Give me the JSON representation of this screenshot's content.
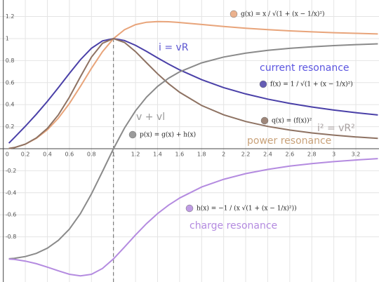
{
  "chart_data": {
    "type": "line",
    "x": [
      0.05,
      0.1,
      0.2,
      0.3,
      0.4,
      0.5,
      0.6,
      0.7,
      0.8,
      0.9,
      1.0,
      1.1,
      1.2,
      1.3,
      1.4,
      1.5,
      1.6,
      1.8,
      2.0,
      2.2,
      2.4,
      2.6,
      2.8,
      3.0,
      3.2,
      3.4
    ],
    "series": [
      {
        "name": "g(x) = x / √(1 + (x − 1/x)²)",
        "color": "#e8a47a",
        "values": [
          0.0025,
          0.0101,
          0.0408,
          0.0939,
          0.172,
          0.2774,
          0.4104,
          0.5658,
          0.7295,
          0.8806,
          1,
          1.0804,
          1.1267,
          1.1483,
          1.1546,
          1.1523,
          1.1456,
          1.1275,
          1.1094,
          1.0936,
          1.0805,
          1.0697,
          1.0607,
          1.0533,
          1.0473,
          1.042
        ]
      },
      {
        "name": "f(x) = 1 / √(1 + (x − 1/x)²)",
        "color": "#4a40a8",
        "values": [
          0.0501,
          0.1005,
          0.204,
          0.3131,
          0.4299,
          0.5547,
          0.6839,
          0.8082,
          0.9119,
          0.9785,
          1,
          0.9822,
          0.9389,
          0.8833,
          0.8247,
          0.7682,
          0.716,
          0.6264,
          0.5547,
          0.4971,
          0.4502,
          0.4114,
          0.3788,
          0.3511,
          0.3273,
          0.3065
        ]
      },
      {
        "name": "q(x) = (f(x))²",
        "color": "#8e7262",
        "values": [
          0.0025,
          0.0101,
          0.0416,
          0.098,
          0.1848,
          0.3077,
          0.4678,
          0.6532,
          0.8316,
          0.9574,
          1,
          0.9648,
          0.8815,
          0.7802,
          0.6802,
          0.5902,
          0.5127,
          0.3924,
          0.3077,
          0.2471,
          0.2027,
          0.1693,
          0.1435,
          0.1233,
          0.1071,
          0.0939
        ]
      },
      {
        "name": "p(x) = g(x) + h(x)",
        "color": "#8a8a8a",
        "values": [
          -0.9995,
          -0.995,
          -0.979,
          -0.95,
          -0.903,
          -0.832,
          -0.73,
          -0.589,
          -0.41,
          -0.207,
          0,
          0.1875,
          0.3443,
          0.4688,
          0.5655,
          0.6402,
          0.6981,
          0.7795,
          0.832,
          0.8676,
          0.8929,
          0.9115,
          0.9254,
          0.9363,
          0.945,
          0.9519
        ]
      },
      {
        "name": "h(x) = −1 / (x √(1 + (x − 1/x)²))",
        "color": "#b48be0",
        "values": [
          -1.002,
          -1.005,
          -1.02,
          -1.044,
          -1.075,
          -1.109,
          -1.14,
          -1.1546,
          -1.1399,
          -1.0872,
          -1,
          -0.8929,
          -0.7824,
          -0.6795,
          -0.5891,
          -0.5121,
          -0.4475,
          -0.348,
          -0.2774,
          -0.226,
          -0.1876,
          -0.1582,
          -0.1353,
          -0.117,
          -0.1023,
          -0.0901
        ]
      }
    ],
    "xlim": [
      -0.03,
      3.41
    ],
    "ylim": [
      -1.21,
      1.35
    ],
    "xticks": [
      0.2,
      0.4,
      0.6,
      0.8,
      1,
      1.2,
      1.4,
      1.6,
      1.8,
      2,
      2.2,
      2.4,
      2.6,
      2.8,
      3,
      3.2
    ],
    "yticks": [
      -0.8,
      -0.6,
      -0.4,
      -0.2,
      0.2,
      0.4,
      0.6,
      0.8,
      1,
      1.2
    ],
    "origin_label": "0",
    "grid": true,
    "dashed_guide": {
      "x": 1,
      "y": 1
    },
    "annotations": [
      {
        "text": "i = vR",
        "color": "#5b55d0"
      },
      {
        "text": "current resonance",
        "color": "#5b55e0"
      },
      {
        "text": "v + vl",
        "color": "#9a9a9a"
      },
      {
        "text": "i² = vR²",
        "color": "#a8a0a0"
      },
      {
        "text": "power resonance",
        "color": "#c9a27a"
      },
      {
        "text": "charge resonance",
        "color": "#b48be0"
      }
    ]
  }
}
